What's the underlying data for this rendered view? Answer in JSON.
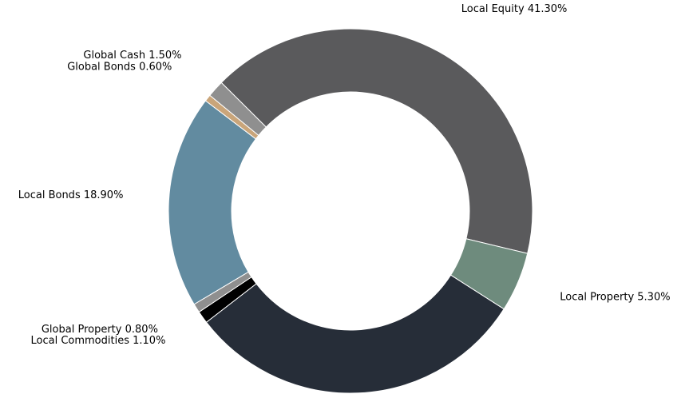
{
  "chart_data": {
    "type": "donut",
    "categories": [
      "Local Equity",
      "Local Property",
      null,
      "Local Commodities",
      "Global Property",
      "Local Bonds",
      "Global Bonds",
      "Global Cash"
    ],
    "values": [
      41.3,
      5.3,
      30.5,
      1.1,
      0.8,
      18.9,
      0.6,
      1.5
    ],
    "value_labels": [
      "41.30%",
      "5.30%",
      null,
      "1.10%",
      "0.80%",
      "18.90%",
      "0.60%",
      "1.50%"
    ],
    "colors": [
      "#5a5a5c",
      "#6e8b7d",
      "#262d38",
      "#000000",
      "#8f8f8f",
      "#628ba0",
      "#c9a57a",
      "#8f8f8f"
    ]
  }
}
